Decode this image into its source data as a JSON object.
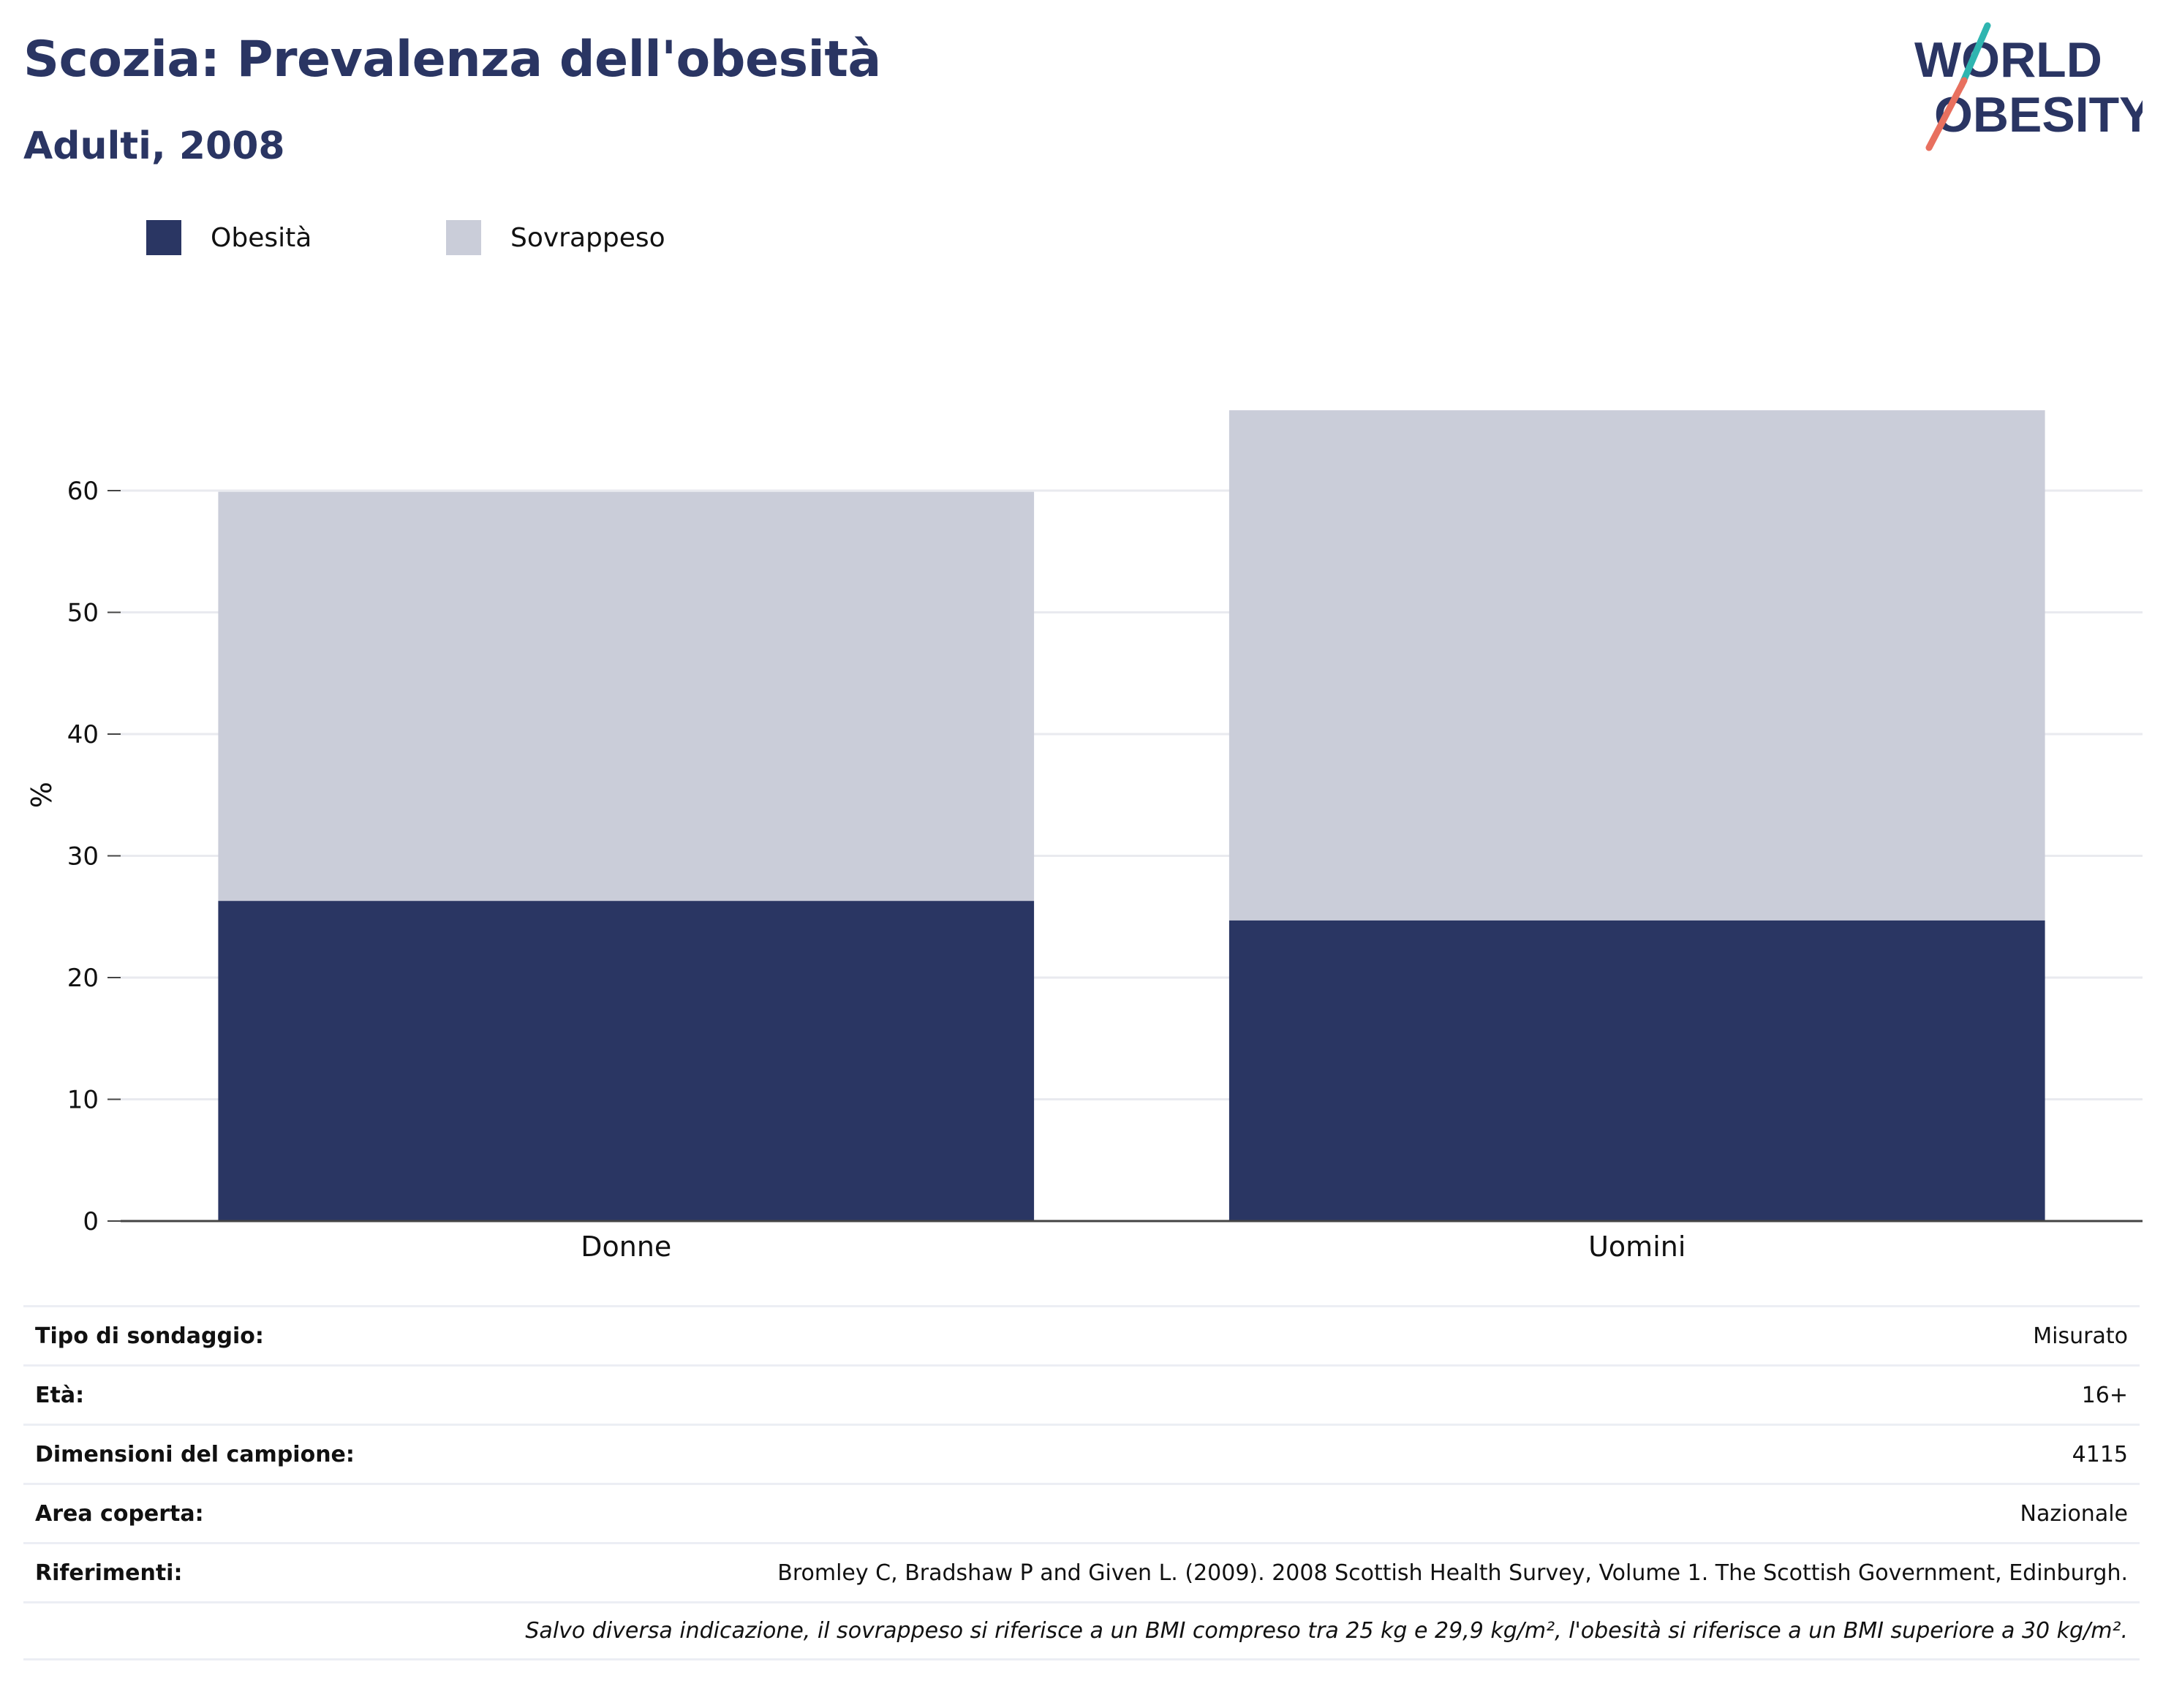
{
  "header": {
    "title": "Scozia: Prevalenza dell'obesità",
    "subtitle": "Adulti, 2008"
  },
  "logo": {
    "line1": "WORLD",
    "line2": "OBESITY",
    "text_color": "#2a3563",
    "accent_teal": "#2fb5b0",
    "accent_coral": "#e8705f"
  },
  "legend": [
    {
      "label": "Obesità",
      "color": "#2a3663"
    },
    {
      "label": "Sovrappeso",
      "color": "#cacdd9"
    }
  ],
  "chart_data": {
    "type": "bar",
    "stacked": true,
    "categories": [
      "Donne",
      "Uomini"
    ],
    "series": [
      {
        "name": "Obesità",
        "color": "#2a3663",
        "values": [
          26.3,
          24.7
        ]
      },
      {
        "name": "Sovrappeso",
        "color": "#cacdd9",
        "values": [
          33.6,
          41.9
        ]
      }
    ],
    "ylabel": "%",
    "yticks": [
      0,
      10,
      20,
      30,
      40,
      50,
      60
    ],
    "ylim": [
      0,
      70
    ],
    "grid": true
  },
  "info_table": [
    {
      "key": "Tipo di sondaggio:",
      "value": "Misurato"
    },
    {
      "key": "Età:",
      "value": "16+"
    },
    {
      "key": "Dimensioni del campione:",
      "value": "4115"
    },
    {
      "key": "Area coperta:",
      "value": "Nazionale"
    },
    {
      "key": "Riferimenti:",
      "value": "Bromley C, Bradshaw P and Given L. (2009). 2008 Scottish Health Survey, Volume 1. The Scottish Government, Edinburgh."
    }
  ],
  "footnote": "Salvo diversa indicazione, il sovrappeso si riferisce a un BMI compreso tra 25 kg e 29,9 kg/m², l'obesità si riferisce a un BMI superiore a 30 kg/m²."
}
